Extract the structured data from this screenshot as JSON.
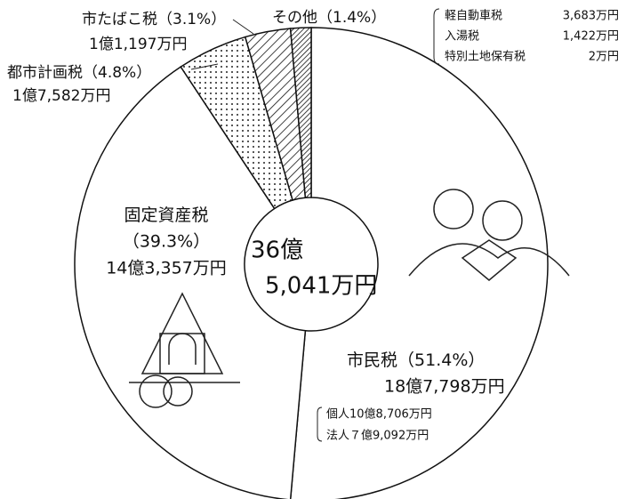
{
  "chart_data": {
    "type": "pie",
    "categories": [
      "市民税",
      "固定資産税",
      "都市計画税",
      "市たばこ税",
      "その他"
    ],
    "values": [
      51.4,
      39.3,
      4.8,
      3.1,
      1.4
    ],
    "value_labels": [
      "（51.4%）",
      "（39.3%）",
      "（4.8%）",
      "（3.1%）",
      "（1.4%）"
    ],
    "amounts": [
      "18億7,798万円",
      "14億3,357万円",
      "1億7,582万円",
      "1億1,197万円",
      null
    ],
    "fills": [
      "#ffffff",
      "#ffffff",
      "url(#dots)",
      "url(#hatch)",
      "url(#dense)"
    ],
    "center_label": [
      "36億",
      "5,041万円"
    ],
    "resident_breakdown": [
      "個人10億8,706万円",
      "法人７億9,092万円"
    ],
    "other_breakdown": [
      [
        "軽自動車税",
        "3,683万円"
      ],
      [
        "入湯税",
        "1,422万円"
      ],
      [
        "特別土地保有税",
        "2万円"
      ]
    ]
  }
}
